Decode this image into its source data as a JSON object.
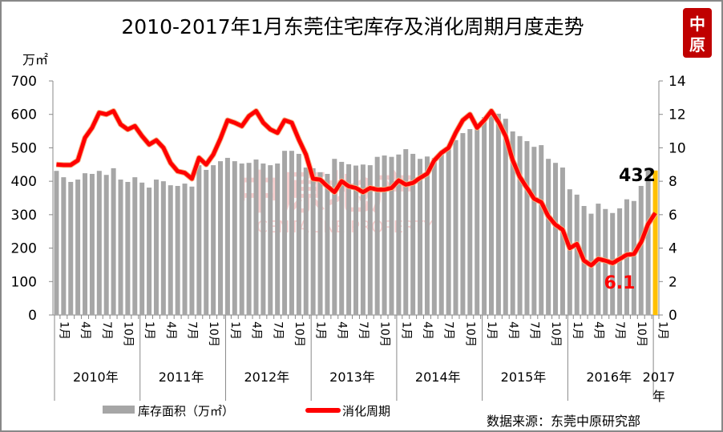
{
  "chart_data": {
    "type": "bar+line",
    "title": "2010-2017年1月东莞住宅库存及消化周期月度走势",
    "y_left_unit": "万㎡",
    "y_left_ticks": [
      0,
      100,
      200,
      300,
      400,
      500,
      600,
      700
    ],
    "y_left_range": [
      0,
      700
    ],
    "y_right_ticks": [
      0,
      2,
      4,
      6,
      8,
      10,
      12,
      14
    ],
    "y_right_range": [
      0,
      14
    ],
    "month_tick_labels": [
      "1月",
      "4月",
      "7月",
      "10月"
    ],
    "last_month_label": "1月",
    "year_labels": [
      "2010年",
      "2011年",
      "2012年",
      "2013年",
      "2014年",
      "2015年",
      "2016年",
      "2017年"
    ],
    "x_start": "2010-01",
    "x_end": "2017-01",
    "grid": false,
    "legend_position": "bottom",
    "series": [
      {
        "name": "库存面积（万㎡）",
        "type": "bar",
        "axis": "left",
        "color": "#A6A6A6",
        "highlight_color": "#FFC000",
        "values": [
          431,
          412,
          398,
          405,
          424,
          422,
          431,
          419,
          439,
          405,
          398,
          412,
          396,
          381,
          405,
          400,
          388,
          386,
          393,
          384,
          448,
          434,
          448,
          460,
          470,
          460,
          453,
          455,
          465,
          453,
          448,
          453,
          491,
          491,
          482,
          441,
          439,
          427,
          422,
          467,
          458,
          451,
          447,
          450,
          448,
          473,
          477,
          473,
          480,
          496,
          482,
          467,
          474,
          470,
          489,
          499,
          523,
          544,
          556,
          555,
          592,
          612,
          602,
          587,
          549,
          535,
          520,
          503,
          508,
          467,
          455,
          441,
          376,
          360,
          326,
          303,
          333,
          317,
          305,
          319,
          346,
          341,
          386,
          436,
          432
        ]
      },
      {
        "name": "消化周期",
        "type": "line",
        "axis": "right",
        "color": "#FF0000",
        "outline_color": "#F4B183",
        "values": [
          9.0,
          8.97,
          8.97,
          9.25,
          10.6,
          11.2,
          12.1,
          12.0,
          12.2,
          11.4,
          11.1,
          11.3,
          10.7,
          10.2,
          10.45,
          10.0,
          9.1,
          8.6,
          8.5,
          8.15,
          9.4,
          9.0,
          9.6,
          10.55,
          11.65,
          11.5,
          11.3,
          11.9,
          12.2,
          11.5,
          11.1,
          10.9,
          11.65,
          11.5,
          10.5,
          9.6,
          8.15,
          8.1,
          7.7,
          7.35,
          8.0,
          7.7,
          7.6,
          7.35,
          7.6,
          7.5,
          7.5,
          7.6,
          8.05,
          7.8,
          7.9,
          8.2,
          8.45,
          9.25,
          9.7,
          10.0,
          10.9,
          11.65,
          12.0,
          11.2,
          11.65,
          12.2,
          11.55,
          10.7,
          9.25,
          8.25,
          7.6,
          6.95,
          6.75,
          5.9,
          5.4,
          5.1,
          4.0,
          4.25,
          3.25,
          2.97,
          3.35,
          3.25,
          3.1,
          3.35,
          3.6,
          3.65,
          4.35,
          5.45,
          6.1
        ]
      }
    ],
    "annotations": [
      {
        "text": "432",
        "series": "库存面积（万㎡）",
        "color": "#000000"
      },
      {
        "text": "6.1",
        "series": "消化周期",
        "color": "#FF0000"
      }
    ]
  },
  "source": "数据来源：东莞中原研究部",
  "logo": {
    "text": "中原",
    "color": "#C00000"
  },
  "watermark": {
    "text": "中原地产",
    "subtext": "CENTALINE PROPERTY"
  }
}
